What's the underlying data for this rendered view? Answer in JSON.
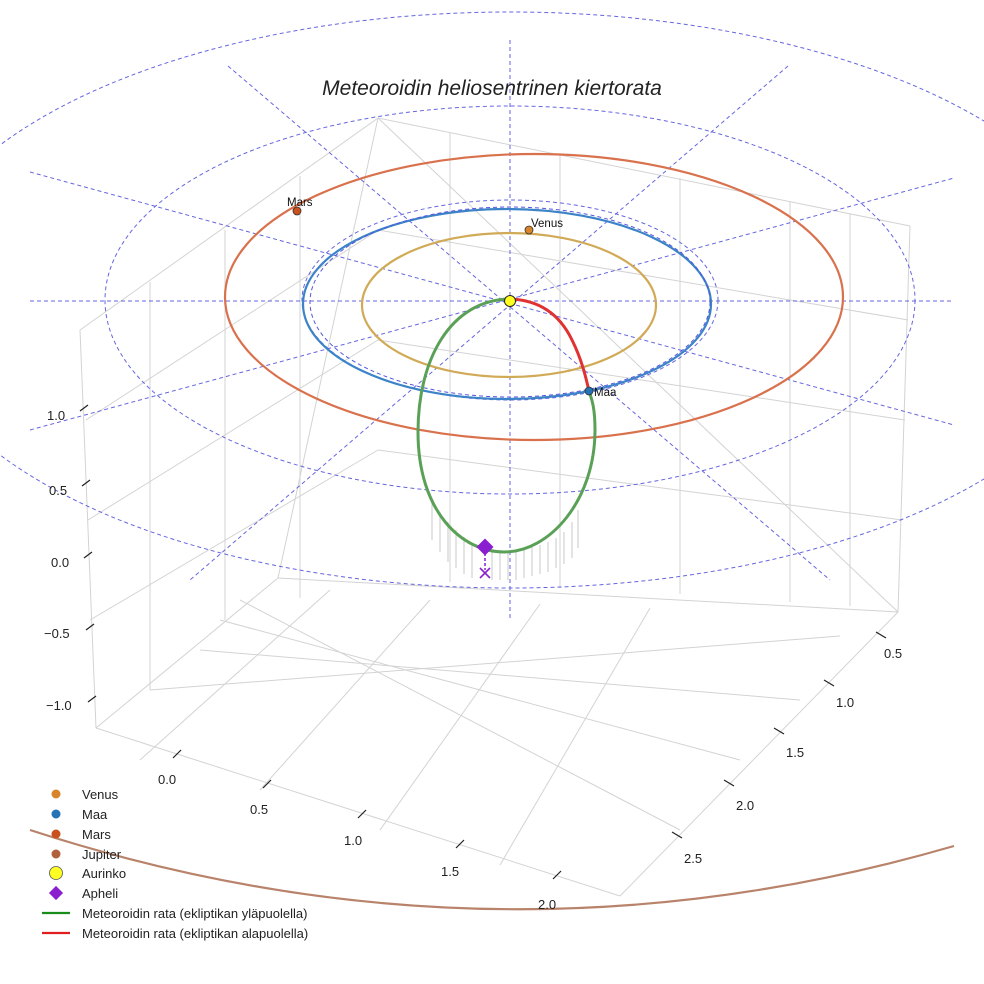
{
  "title": "Meteoroidin heliosentrinen kiertorata",
  "z_ticks": [
    "1.0",
    "0.5",
    "0.0",
    "−0.5",
    "−1.0"
  ],
  "x_ticks": [
    "0.0",
    "0.5",
    "1.0",
    "1.5",
    "2.0"
  ],
  "y_ticks": [
    "0.5",
    "1.0",
    "1.5",
    "2.0",
    "2.5"
  ],
  "planets": {
    "mars": {
      "label": "Mars",
      "color": "#c8511d"
    },
    "venus": {
      "label": "Venus",
      "color": "#d8842a"
    },
    "earth": {
      "label": "Maa",
      "color": "#2573b5"
    }
  },
  "orbit_colors": {
    "venus": "#d1aa57",
    "earth": "#3c83c8",
    "mars": "#d9714d",
    "jupiter": "#b8836a",
    "meteoroid_above": "#5aa157",
    "meteoroid_below": "#e03232",
    "grid_circle": "#5555dd",
    "aphelion": "#8a1fd0"
  },
  "legend": [
    {
      "label": "Venus",
      "marker": "dot",
      "color": "#d8842a"
    },
    {
      "label": "Maa",
      "marker": "dot",
      "color": "#2573b5"
    },
    {
      "label": "Mars",
      "marker": "dot",
      "color": "#c8511d"
    },
    {
      "label": "Jupiter",
      "marker": "dot",
      "color": "#b0603c"
    },
    {
      "label": "Aurinko",
      "marker": "sun",
      "color": "#ffff22"
    },
    {
      "label": "Apheli",
      "marker": "diamond",
      "color": "#8a1fd0"
    },
    {
      "label": "Meteoroidin rata (ekliptikan yläpuolella)",
      "marker": "line",
      "color": "#1a8c1a"
    },
    {
      "label": "Meteoroidin rata (ekliptikan alapuolella)",
      "marker": "line",
      "color": "#e02020"
    }
  ]
}
